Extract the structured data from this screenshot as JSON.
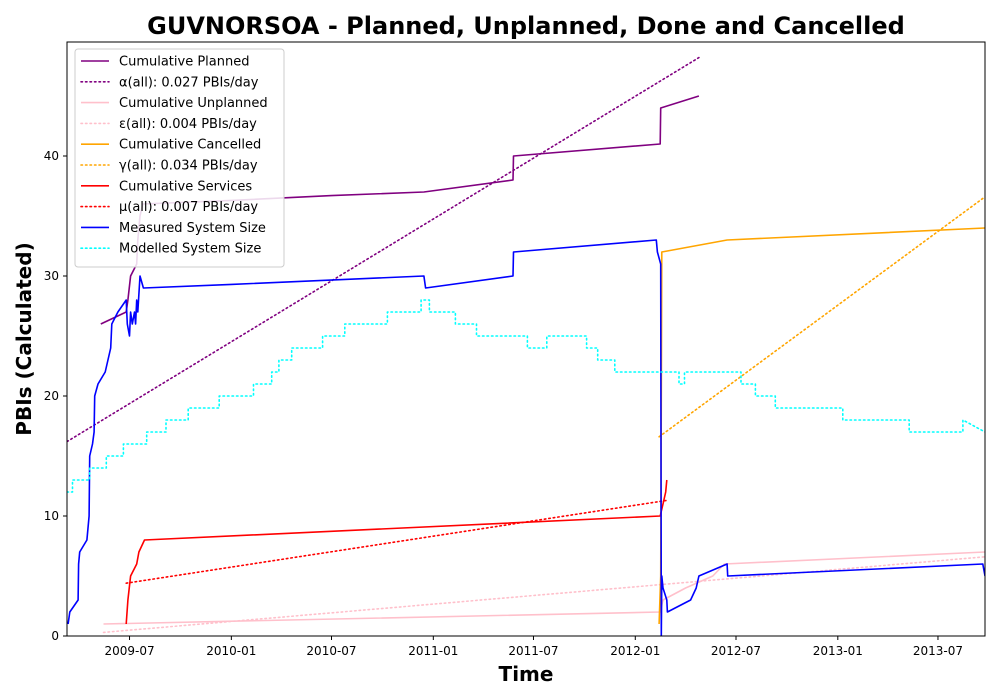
{
  "chart_data": {
    "type": "line",
    "title": "GUVNORSOA - Planned, Unplanned, Done  and Cancelled",
    "xlabel": "Time",
    "ylabel": "PBIs (Calculated)",
    "xlim": [
      "2009-03-10",
      "2013-09-24"
    ],
    "ylim": [
      0,
      49.5
    ],
    "x_ticks": [
      "2009-07",
      "2010-01",
      "2010-07",
      "2011-01",
      "2011-07",
      "2012-01",
      "2012-07",
      "2013-01",
      "2013-07"
    ],
    "y_ticks": [
      0,
      10,
      20,
      30,
      40
    ],
    "grid": false,
    "legend_position": "top-left",
    "series": [
      {
        "name": "Cumulative Planned",
        "color": "#800080",
        "style": "solid",
        "points": [
          [
            "2009-05-10",
            26
          ],
          [
            "2009-06-25",
            27
          ],
          [
            "2009-06-28",
            28
          ],
          [
            "2009-07-03",
            30
          ],
          [
            "2009-07-14",
            31
          ],
          [
            "2009-07-16",
            33
          ],
          [
            "2009-07-20",
            35
          ],
          [
            "2009-07-25",
            36
          ],
          [
            "2010-01-01",
            36.3
          ],
          [
            "2010-07-01",
            36.7
          ],
          [
            "2010-12-15",
            37
          ],
          [
            "2011-05-25",
            38
          ],
          [
            "2011-05-26",
            40
          ],
          [
            "2012-02-15",
            41
          ],
          [
            "2012-02-16",
            44
          ],
          [
            "2012-04-25",
            45
          ]
        ]
      },
      {
        "name": "α(all): 0.027 PBIs/day",
        "color": "#800080",
        "style": "dotted",
        "points": [
          [
            "2009-03-10",
            16.2
          ],
          [
            "2012-04-25",
            48.2
          ]
        ]
      },
      {
        "name": "Cumulative Unplanned",
        "color": "#ffc0cb",
        "style": "solid",
        "points": [
          [
            "2009-05-15",
            1
          ],
          [
            "2012-02-15",
            2
          ],
          [
            "2012-02-20",
            3
          ],
          [
            "2012-04-01",
            4
          ],
          [
            "2012-05-20",
            5
          ],
          [
            "2012-06-10",
            6
          ],
          [
            "2013-09-24",
            7
          ]
        ]
      },
      {
        "name": "ε(all): 0.004 PBIs/day",
        "color": "#ffc0cb",
        "style": "dotted",
        "points": [
          [
            "2009-05-15",
            0.3
          ],
          [
            "2013-09-24",
            6.6
          ]
        ]
      },
      {
        "name": "Cumulative Cancelled",
        "color": "#ffa500",
        "style": "solid",
        "points": [
          [
            "2012-02-13",
            1
          ],
          [
            "2012-02-16",
            5
          ],
          [
            "2012-02-18",
            32
          ],
          [
            "2012-06-15",
            33
          ],
          [
            "2013-09-24",
            34
          ]
        ]
      },
      {
        "name": "γ(all): 0.034 PBIs/day",
        "color": "#ffa500",
        "style": "dotted",
        "points": [
          [
            "2012-02-13",
            16.6
          ],
          [
            "2013-09-24",
            36.6
          ]
        ]
      },
      {
        "name": "Cumulative Services",
        "color": "#ff0000",
        "style": "solid",
        "points": [
          [
            "2009-06-25",
            1
          ],
          [
            "2009-06-28",
            3
          ],
          [
            "2009-07-03",
            5
          ],
          [
            "2009-07-14",
            6
          ],
          [
            "2009-07-18",
            7
          ],
          [
            "2009-07-28",
            8
          ],
          [
            "2012-02-15",
            10
          ],
          [
            "2012-02-20",
            11
          ],
          [
            "2012-02-25",
            12
          ],
          [
            "2012-02-27",
            13
          ]
        ]
      },
      {
        "name": "μ(all): 0.007 PBIs/day",
        "color": "#ff0000",
        "style": "dotted",
        "points": [
          [
            "2009-06-25",
            4.4
          ],
          [
            "2012-02-27",
            11.3
          ]
        ]
      },
      {
        "name": "Measured System Size",
        "color": "#0000ff",
        "style": "solid",
        "points": [
          [
            "2009-03-12",
            1
          ],
          [
            "2009-03-15",
            2
          ],
          [
            "2009-03-30",
            3
          ],
          [
            "2009-03-31",
            6
          ],
          [
            "2009-04-02",
            7
          ],
          [
            "2009-04-15",
            8
          ],
          [
            "2009-04-17",
            9
          ],
          [
            "2009-04-19",
            10
          ],
          [
            "2009-04-20",
            15
          ],
          [
            "2009-04-25",
            16
          ],
          [
            "2009-04-28",
            17
          ],
          [
            "2009-04-29",
            20
          ],
          [
            "2009-05-05",
            21
          ],
          [
            "2009-05-18",
            22
          ],
          [
            "2009-05-28",
            24
          ],
          [
            "2009-05-30",
            26
          ],
          [
            "2009-06-10",
            27
          ],
          [
            "2009-06-25",
            28
          ],
          [
            "2009-06-27",
            26
          ],
          [
            "2009-07-01",
            25
          ],
          [
            "2009-07-03",
            27
          ],
          [
            "2009-07-06",
            26
          ],
          [
            "2009-07-10",
            27
          ],
          [
            "2009-07-12",
            26
          ],
          [
            "2009-07-14",
            28
          ],
          [
            "2009-07-16",
            27
          ],
          [
            "2009-07-20",
            30
          ],
          [
            "2009-07-26",
            29
          ],
          [
            "2010-01-01",
            29.3
          ],
          [
            "2010-12-15",
            30
          ],
          [
            "2010-12-18",
            29
          ],
          [
            "2011-05-25",
            30
          ],
          [
            "2011-05-26",
            32
          ],
          [
            "2012-02-08",
            33
          ],
          [
            "2012-02-10",
            32
          ],
          [
            "2012-02-16",
            31
          ],
          [
            "2012-02-17",
            0
          ],
          [
            "2012-02-18",
            5
          ],
          [
            "2012-02-20",
            4
          ],
          [
            "2012-02-27",
            3
          ],
          [
            "2012-02-28",
            2
          ],
          [
            "2012-04-10",
            3
          ],
          [
            "2012-04-20",
            4
          ],
          [
            "2012-04-25",
            5
          ],
          [
            "2012-06-15",
            6
          ],
          [
            "2012-06-16",
            5
          ],
          [
            "2013-09-20",
            6
          ],
          [
            "2013-09-24",
            5
          ]
        ]
      },
      {
        "name": "Modelled System Size",
        "color": "#00ffff",
        "style": "dotted",
        "points": [
          [
            "2009-03-10",
            12
          ],
          [
            "2009-03-20",
            12
          ],
          [
            "2009-03-20",
            13
          ],
          [
            "2009-04-20",
            13
          ],
          [
            "2009-04-20",
            14
          ],
          [
            "2009-05-20",
            14
          ],
          [
            "2009-05-20",
            15
          ],
          [
            "2009-06-20",
            15
          ],
          [
            "2009-06-20",
            16
          ],
          [
            "2009-08-01",
            16
          ],
          [
            "2009-08-01",
            17
          ],
          [
            "2009-09-05",
            17
          ],
          [
            "2009-09-05",
            18
          ],
          [
            "2009-10-15",
            18
          ],
          [
            "2009-10-15",
            19
          ],
          [
            "2009-12-10",
            19
          ],
          [
            "2009-12-10",
            20
          ],
          [
            "2010-02-10",
            20
          ],
          [
            "2010-02-10",
            21
          ],
          [
            "2010-03-15",
            21
          ],
          [
            "2010-03-15",
            22
          ],
          [
            "2010-03-28",
            22
          ],
          [
            "2010-03-28",
            23
          ],
          [
            "2010-04-20",
            23
          ],
          [
            "2010-04-20",
            24
          ],
          [
            "2010-06-15",
            24
          ],
          [
            "2010-06-15",
            25
          ],
          [
            "2010-07-25",
            25
          ],
          [
            "2010-07-25",
            26
          ],
          [
            "2010-10-10",
            26
          ],
          [
            "2010-10-10",
            27
          ],
          [
            "2010-12-10",
            27
          ],
          [
            "2010-12-10",
            28
          ],
          [
            "2010-12-25",
            28
          ],
          [
            "2010-12-25",
            27
          ],
          [
            "2011-02-10",
            27
          ],
          [
            "2011-02-10",
            26
          ],
          [
            "2011-03-20",
            26
          ],
          [
            "2011-03-20",
            25
          ],
          [
            "2011-06-20",
            25
          ],
          [
            "2011-06-20",
            24
          ],
          [
            "2011-07-25",
            24
          ],
          [
            "2011-07-25",
            25
          ],
          [
            "2011-10-05",
            25
          ],
          [
            "2011-10-05",
            24
          ],
          [
            "2011-10-25",
            24
          ],
          [
            "2011-10-25",
            23
          ],
          [
            "2011-11-25",
            23
          ],
          [
            "2011-11-25",
            22
          ],
          [
            "2012-03-20",
            22
          ],
          [
            "2012-03-20",
            21
          ],
          [
            "2012-03-30",
            21
          ],
          [
            "2012-03-30",
            22
          ],
          [
            "2012-07-10",
            22
          ],
          [
            "2012-07-10",
            21
          ],
          [
            "2012-08-05",
            21
          ],
          [
            "2012-08-05",
            20
          ],
          [
            "2012-09-10",
            20
          ],
          [
            "2012-09-10",
            19
          ],
          [
            "2013-01-10",
            19
          ],
          [
            "2013-01-10",
            18
          ],
          [
            "2013-05-10",
            18
          ],
          [
            "2013-05-10",
            17
          ],
          [
            "2013-08-15",
            17
          ],
          [
            "2013-08-15",
            18
          ],
          [
            "2013-09-24",
            17
          ]
        ]
      }
    ]
  }
}
